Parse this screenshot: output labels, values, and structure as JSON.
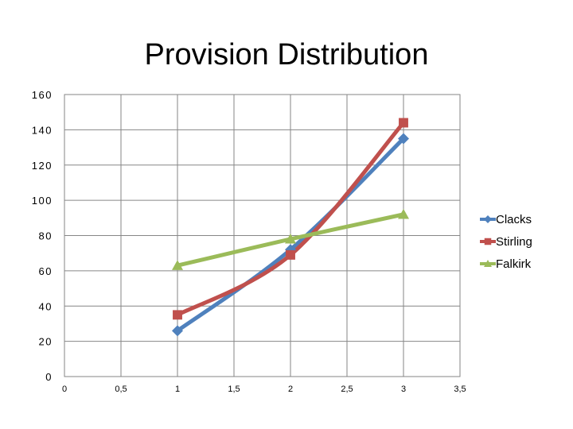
{
  "chart_data": {
    "type": "scatter",
    "title": "Provision Distribution",
    "xlabel": "",
    "ylabel": "",
    "xlim": [
      0,
      3.5
    ],
    "ylim": [
      0,
      160
    ],
    "x_ticks": [
      {
        "value": 0,
        "label": "0"
      },
      {
        "value": 0.5,
        "label": "0,5"
      },
      {
        "value": 1,
        "label": "1"
      },
      {
        "value": 1.5,
        "label": "1,5"
      },
      {
        "value": 2,
        "label": "2"
      },
      {
        "value": 2.5,
        "label": "2,5"
      },
      {
        "value": 3,
        "label": "3"
      },
      {
        "value": 3.5,
        "label": "3,5"
      }
    ],
    "y_ticks": [
      {
        "value": 0,
        "label": "0"
      },
      {
        "value": 20,
        "label": "20"
      },
      {
        "value": 40,
        "label": "40"
      },
      {
        "value": 60,
        "label": "60"
      },
      {
        "value": 80,
        "label": "80"
      },
      {
        "value": 100,
        "label": "100"
      },
      {
        "value": 120,
        "label": "120"
      },
      {
        "value": 140,
        "label": "140"
      },
      {
        "value": 160,
        "label": "160"
      }
    ],
    "grid": true,
    "smooth_lines": true,
    "legend_position": "right",
    "series": [
      {
        "name": "Clacks",
        "color": "#4F81BD",
        "marker": "diamond",
        "x": [
          1,
          2,
          3
        ],
        "y": [
          26,
          72,
          135
        ]
      },
      {
        "name": "Stirling",
        "color": "#C0504D",
        "marker": "square",
        "x": [
          1,
          2,
          3
        ],
        "y": [
          35,
          69,
          144
        ]
      },
      {
        "name": "Falkirk",
        "color": "#9BBB59",
        "marker": "triangle",
        "x": [
          1,
          2,
          3
        ],
        "y": [
          63,
          78,
          92
        ]
      }
    ]
  }
}
